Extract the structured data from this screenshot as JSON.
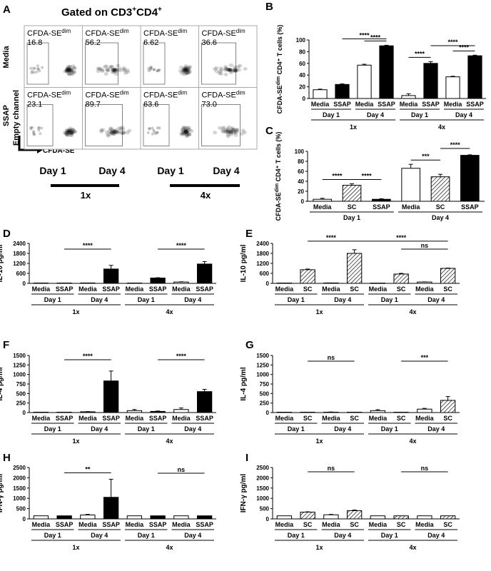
{
  "figure": {
    "panel_letters": [
      "A",
      "B",
      "C",
      "D",
      "E",
      "F",
      "G",
      "H",
      "I"
    ]
  },
  "flow": {
    "title_main": "Gated on CD3",
    "title_sup1": "+",
    "title_mid": "CD4",
    "title_sup2": "+",
    "row_labels": [
      "Media",
      "SSAP"
    ],
    "y_channel": "Empty channel",
    "x_channel": "CFDA-SE",
    "gate_label": "CFDA-SE",
    "gate_sup": "dim",
    "values": [
      [
        "16.8",
        "56.2",
        "6.62",
        "36.6"
      ],
      [
        "23.1",
        "89.7",
        "63.6",
        "73.0"
      ]
    ],
    "day_labels": [
      "Day 1",
      "Day 4",
      "Day 1",
      "Day 4"
    ],
    "group_labels": [
      "1x",
      "4x"
    ]
  },
  "chart_data": [
    {
      "panel": "B",
      "type": "bar",
      "ylabel_pre": "CFDA-SE",
      "ylabel_sup": "dim",
      "ylabel_post": " CD4⁺ T cells (%)",
      "ylim": [
        0,
        100
      ],
      "yticks": [
        "0",
        "20",
        "40",
        "60",
        "80",
        "100"
      ],
      "categories": [
        "Media",
        "SSAP",
        "Media",
        "SSAP",
        "Media",
        "SSAP",
        "Media",
        "SSAP"
      ],
      "values": [
        15,
        24,
        57,
        90,
        5,
        60,
        37,
        73
      ],
      "errors": [
        1,
        1,
        1.5,
        1,
        3,
        3,
        1,
        1
      ],
      "fills": [
        "open",
        "solid",
        "open",
        "solid",
        "open",
        "solid",
        "open",
        "solid"
      ],
      "day_labels": [
        "Day 1",
        "Day 4",
        "Day 1",
        "Day 4"
      ],
      "group_labels": [
        "1x",
        "4x"
      ],
      "significance": [
        {
          "from": 1,
          "to": 3,
          "label": "****",
          "level": 1
        },
        {
          "from": 2,
          "to": 3,
          "label": "****",
          "level": 0
        },
        {
          "from": 4,
          "to": 5,
          "label": "****",
          "level": 0
        },
        {
          "from": 5,
          "to": 7,
          "label": "****",
          "level": 1
        },
        {
          "from": 6,
          "to": 7,
          "label": "****",
          "level": 0
        }
      ]
    },
    {
      "panel": "C",
      "type": "bar",
      "ylabel_pre": "CFDA-SE",
      "ylabel_sup": "dim",
      "ylabel_post": " CD4⁺ T cells (%)",
      "ylim": [
        0,
        100
      ],
      "yticks": [
        "0",
        "20",
        "40",
        "60",
        "80",
        "100"
      ],
      "categories": [
        "Media",
        "SC",
        "SSAP",
        "Media",
        "SC",
        "SSAP"
      ],
      "values": [
        4,
        32,
        4,
        66,
        49,
        92
      ],
      "errors": [
        2,
        3,
        1,
        8,
        5,
        1
      ],
      "fills": [
        "open",
        "hatch",
        "solid",
        "open",
        "hatch",
        "solid"
      ],
      "day_labels": [
        "Day 1",
        "Day 4"
      ],
      "group_labels": [],
      "significance": [
        {
          "from": 0,
          "to": 1,
          "label": "****",
          "level": 0
        },
        {
          "from": 1,
          "to": 2,
          "label": "****",
          "level": 0
        },
        {
          "from": 3,
          "to": 4,
          "label": "***",
          "level": 0
        },
        {
          "from": 4,
          "to": 5,
          "label": "****",
          "level": 1
        }
      ]
    },
    {
      "panel": "D",
      "type": "bar",
      "ylabel": "IL-10 pg/ml",
      "ylim": [
        0,
        2400
      ],
      "yticks": [
        "0",
        "600",
        "1200",
        "1800",
        "2400"
      ],
      "categories": [
        "Media",
        "SSAP",
        "Media",
        "SSAP",
        "Media",
        "SSAP",
        "Media",
        "SSAP"
      ],
      "values": [
        20,
        20,
        25,
        860,
        20,
        320,
        80,
        1160
      ],
      "errors": [
        0,
        0,
        0,
        220,
        0,
        20,
        15,
        150
      ],
      "fills": [
        "open",
        "solid",
        "open",
        "solid",
        "open",
        "solid",
        "open",
        "solid"
      ],
      "day_labels": [
        "Day 1",
        "Day 4",
        "Day 1",
        "Day 4"
      ],
      "group_labels": [
        "1x",
        "4x"
      ],
      "significance": [
        {
          "from": 1,
          "to": 3,
          "label": "****",
          "level": 1
        },
        {
          "from": 5,
          "to": 7,
          "label": "****",
          "level": 1
        }
      ]
    },
    {
      "panel": "E",
      "type": "bar",
      "ylabel": "IL-10 pg/ml",
      "ylim": [
        0,
        2400
      ],
      "yticks": [
        "0",
        "600",
        "1200",
        "1800",
        "2400"
      ],
      "categories": [
        "Media",
        "SC",
        "Media",
        "SC",
        "Media",
        "SC",
        "Media",
        "SC"
      ],
      "values": [
        20,
        820,
        25,
        1800,
        15,
        560,
        80,
        900
      ],
      "errors": [
        0,
        40,
        0,
        220,
        0,
        40,
        10,
        20
      ],
      "fills": [
        "open",
        "hatch",
        "open",
        "hatch",
        "open",
        "hatch",
        "open",
        "hatch"
      ],
      "day_labels": [
        "Day 1",
        "Day 4",
        "Day 1",
        "Day 4"
      ],
      "group_labels": [
        "1x",
        "4x"
      ],
      "significance": [
        {
          "from": 1,
          "to": 3,
          "label": "****",
          "level": 2
        },
        {
          "from": 3,
          "to": 7,
          "label": "****",
          "level": 2
        },
        {
          "from": 5,
          "to": 7,
          "label": "ns",
          "level": 1
        }
      ]
    },
    {
      "panel": "F",
      "type": "bar",
      "ylabel": "IL-4 pg/ml",
      "ylim": [
        0,
        1500
      ],
      "yticks": [
        "0",
        "250",
        "500",
        "750",
        "1000",
        "1250",
        "1500"
      ],
      "categories": [
        "Media",
        "SSAP",
        "Media",
        "SSAP",
        "Media",
        "SSAP",
        "Media",
        "SSAP"
      ],
      "values": [
        10,
        10,
        20,
        830,
        50,
        30,
        80,
        550
      ],
      "errors": [
        0,
        0,
        5,
        260,
        30,
        10,
        40,
        60
      ],
      "fills": [
        "open",
        "solid",
        "open",
        "solid",
        "open",
        "solid",
        "open",
        "solid"
      ],
      "day_labels": [
        "Day 1",
        "Day 4",
        "Day 1",
        "Day 4"
      ],
      "group_labels": [
        "1x",
        "4x"
      ],
      "significance": [
        {
          "from": 1,
          "to": 3,
          "label": "****",
          "level": 2
        },
        {
          "from": 5,
          "to": 7,
          "label": "****",
          "level": 2
        }
      ]
    },
    {
      "panel": "G",
      "type": "bar",
      "ylabel": "IL-4 pg/ml",
      "ylim": [
        0,
        1500
      ],
      "yticks": [
        "0",
        "250",
        "500",
        "750",
        "1000",
        "1250",
        "1500"
      ],
      "categories": [
        "Media",
        "SC",
        "Media",
        "SC",
        "Media",
        "SC",
        "Media",
        "SC"
      ],
      "values": [
        10,
        10,
        10,
        10,
        50,
        10,
        90,
        320
      ],
      "errors": [
        0,
        0,
        5,
        0,
        25,
        0,
        20,
        100
      ],
      "fills": [
        "open",
        "hatch",
        "open",
        "hatch",
        "open",
        "hatch",
        "open",
        "hatch"
      ],
      "day_labels": [
        "Day 1",
        "Day 4",
        "Day 1",
        "Day 4"
      ],
      "group_labels": [
        "1x",
        "4x"
      ],
      "significance": [
        {
          "from": 1,
          "to": 3,
          "label": "ns",
          "level": 1
        },
        {
          "from": 5,
          "to": 7,
          "label": "***",
          "level": 1
        }
      ]
    },
    {
      "panel": "H",
      "type": "bar",
      "ylabel": "IFN-γ pg/ml",
      "ylim": [
        0,
        2500
      ],
      "yticks": [
        "0",
        "500",
        "1000",
        "1500",
        "2000",
        "2500"
      ],
      "categories": [
        "Media",
        "SSAP",
        "Media",
        "SSAP",
        "Media",
        "SSAP",
        "Media",
        "SSAP"
      ],
      "values": [
        150,
        150,
        190,
        1050,
        150,
        150,
        150,
        150
      ],
      "errors": [
        0,
        0,
        30,
        880,
        0,
        0,
        0,
        0
      ],
      "fills": [
        "open",
        "solid",
        "open",
        "solid",
        "open",
        "solid",
        "open",
        "solid"
      ],
      "day_labels": [
        "Day 1",
        "Day 4",
        "Day 1",
        "Day 4"
      ],
      "group_labels": [
        "1x",
        "4x"
      ],
      "significance": [
        {
          "from": 1,
          "to": 3,
          "label": "**",
          "level": 1
        },
        {
          "from": 5,
          "to": 7,
          "label": "ns",
          "level": 1
        }
      ]
    },
    {
      "panel": "I",
      "type": "bar",
      "ylabel": "IFN-γ pg/ml",
      "ylim": [
        0,
        2500
      ],
      "yticks": [
        "0",
        "500",
        "1000",
        "1500",
        "2000",
        "2500"
      ],
      "categories": [
        "Media",
        "SC",
        "Media",
        "SC",
        "Media",
        "SC",
        "Media",
        "SC"
      ],
      "values": [
        150,
        330,
        200,
        400,
        150,
        150,
        150,
        150
      ],
      "errors": [
        0,
        15,
        20,
        30,
        0,
        0,
        0,
        0
      ],
      "fills": [
        "open",
        "hatch",
        "open",
        "hatch",
        "open",
        "hatch",
        "open",
        "hatch"
      ],
      "day_labels": [
        "Day 1",
        "Day 4",
        "Day 1",
        "Day 4"
      ],
      "group_labels": [
        "1x",
        "4x"
      ],
      "significance": [
        {
          "from": 1,
          "to": 3,
          "label": "ns",
          "level": 2
        },
        {
          "from": 5,
          "to": 7,
          "label": "ns",
          "level": 2
        }
      ]
    }
  ]
}
